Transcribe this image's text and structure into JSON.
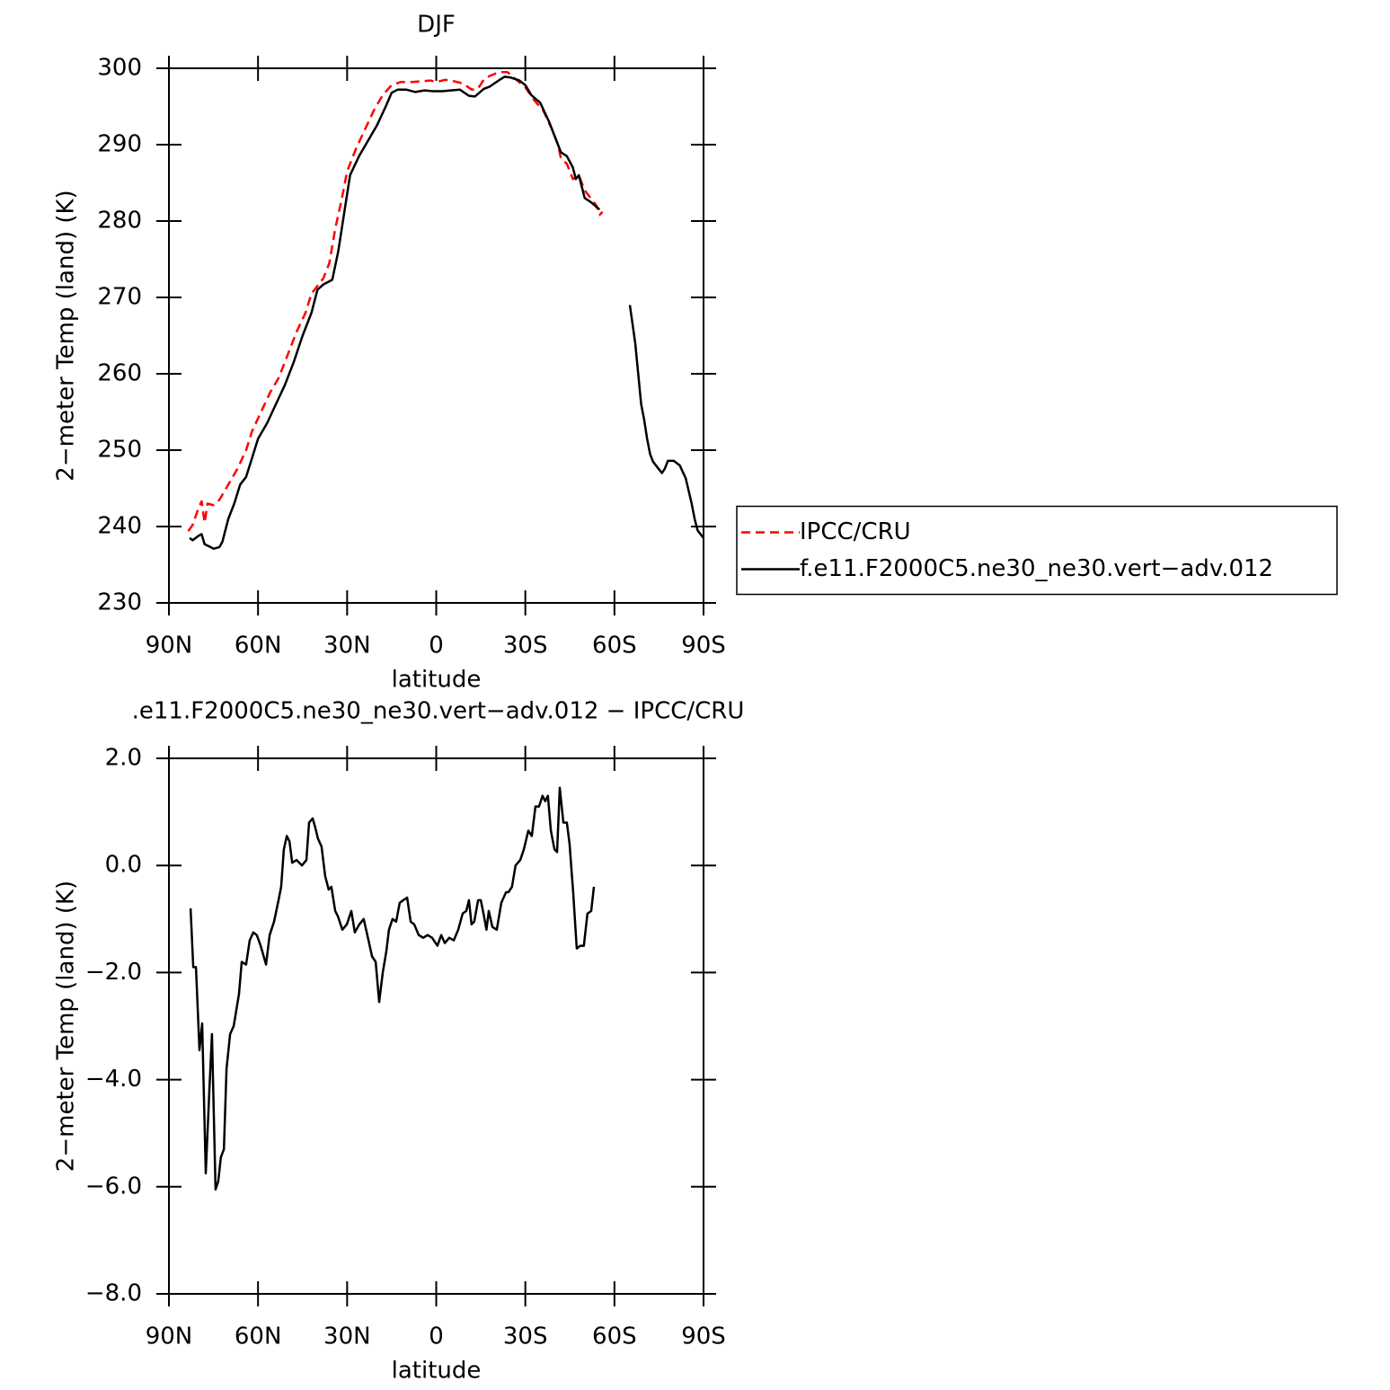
{
  "chart_data": [
    {
      "type": "line",
      "title": "DJF",
      "xlabel": "latitude",
      "ylabel": "2−meter Temp (land) (K)",
      "xlim": [
        90,
        -90
      ],
      "xticks": [
        {
          "value": 90,
          "label": "90N"
        },
        {
          "value": 60,
          "label": "60N"
        },
        {
          "value": 30,
          "label": "30N"
        },
        0,
        {
          "value": -30,
          "label": "30S"
        },
        {
          "value": -60,
          "label": "60S"
        },
        {
          "value": -90,
          "label": "90S"
        }
      ],
      "ylim": [
        230,
        300
      ],
      "yticks": [
        230,
        240,
        250,
        260,
        270,
        280,
        290,
        300
      ],
      "legend": "right",
      "series": [
        {
          "name": "IPCC/CRU",
          "color": "#ff0000",
          "linestyle": "dashed",
          "x": [
            83.5,
            82,
            80,
            79,
            78,
            77,
            75,
            73,
            70,
            67,
            64,
            62,
            59,
            56,
            53,
            50,
            47,
            44,
            42,
            38,
            36,
            34,
            32,
            30,
            27,
            24,
            21,
            18,
            15,
            12,
            8,
            5,
            2,
            0,
            -3,
            -6,
            -9,
            -12,
            -14,
            -16,
            -18,
            -20,
            -22,
            -24,
            -27,
            -30,
            -33,
            -36,
            -39,
            -41,
            -42,
            -44,
            -46,
            -48,
            -50,
            -52,
            -54,
            -55,
            -56
          ],
          "values": [
            239.4,
            240.2,
            242.5,
            243.3,
            240.5,
            243,
            242.8,
            243.5,
            245.5,
            247.5,
            250,
            252.5,
            255,
            257.5,
            259.5,
            262.5,
            265.5,
            268,
            270.5,
            272.5,
            274.5,
            279,
            282.5,
            286.5,
            289.5,
            292,
            294.5,
            296.5,
            297.8,
            298.2,
            298.2,
            298.3,
            298.4,
            298.2,
            298.5,
            298.3,
            298,
            297.2,
            297.3,
            298.5,
            299,
            299.3,
            299.5,
            299.5,
            298.5,
            297.5,
            295.8,
            294.5,
            292,
            290,
            288.2,
            287.5,
            285.5,
            286,
            284,
            283,
            282,
            280.8,
            281.2
          ]
        },
        {
          "name": "f.e11.F2000C5.ne30_ne30.vert−adv.012",
          "color": "#000000",
          "linestyle": "solid",
          "x": [
            83,
            82,
            80,
            79,
            78,
            76,
            75,
            73,
            72,
            70,
            68,
            66,
            64,
            62,
            60,
            57,
            54,
            51,
            48,
            45,
            42,
            40,
            38,
            35,
            33,
            31,
            29,
            26,
            23,
            20,
            17,
            15,
            13,
            10,
            7,
            4,
            1,
            -2,
            -5,
            -8,
            -11,
            -13,
            -16,
            -18,
            -21,
            -23,
            -25,
            -28,
            -30,
            -32,
            -35,
            -38,
            -40,
            -42,
            -44,
            -46,
            -47,
            -48,
            -50,
            -52,
            -55,
            -60,
            -65.2,
            -67,
            -68,
            -69,
            -70,
            -71,
            -72,
            -73,
            -75,
            -76,
            -77,
            -78,
            -80,
            -82,
            -84,
            -86,
            -87,
            -88,
            -90
          ],
          "values": [
            238.5,
            238.2,
            238.8,
            239,
            237.7,
            237.3,
            237.1,
            237.3,
            238,
            241,
            243,
            245.5,
            246.5,
            249,
            251.5,
            253.5,
            256,
            258.5,
            261.5,
            265,
            268,
            271,
            271.7,
            272.3,
            276,
            281,
            286,
            288.5,
            290.5,
            292.5,
            295,
            296.8,
            297.2,
            297.2,
            296.9,
            297.1,
            297,
            297,
            297.1,
            297.2,
            296.4,
            296.3,
            297.3,
            297.6,
            298.4,
            298.9,
            298.8,
            298.4,
            297.8,
            296.5,
            295.5,
            293,
            291,
            289,
            288.5,
            287,
            285.5,
            286,
            283,
            282.5,
            281.5,
            null,
            269,
            264,
            260,
            256,
            254,
            251.5,
            249.5,
            248.5,
            247.5,
            247,
            247.6,
            248.6,
            248.6,
            248,
            246.3,
            243,
            241,
            239.5,
            238.5
          ]
        }
      ]
    },
    {
      "type": "line",
      "title": ".e11.F2000C5.ne30_ne30.vert−adv.012 − IPCC/CRU",
      "xlabel": "latitude",
      "ylabel": "2−meter Temp (land) (K)",
      "xlim": [
        90,
        -90
      ],
      "xticks": [
        {
          "value": 90,
          "label": "90N"
        },
        {
          "value": 60,
          "label": "60N"
        },
        {
          "value": 30,
          "label": "30N"
        },
        0,
        {
          "value": -30,
          "label": "30S"
        },
        {
          "value": -60,
          "label": "60S"
        },
        {
          "value": -90,
          "label": "90S"
        }
      ],
      "ylim": [
        -8,
        2
      ],
      "yticks": [
        {
          "value": -8,
          "label": "−8.0"
        },
        {
          "value": -6,
          "label": "−6.0"
        },
        {
          "value": -4,
          "label": "−4.0"
        },
        {
          "value": -2,
          "label": "−2.0"
        },
        {
          "value": 0,
          "label": "0.0"
        },
        {
          "value": 2,
          "label": "2.0"
        }
      ],
      "series": [
        {
          "color": "#000000",
          "linestyle": "solid",
          "x": [
            82.7,
            81.8,
            80.9,
            79.7,
            78.8,
            77.6,
            76.4,
            75.5,
            74.3,
            73.4,
            72.5,
            71.5,
            70.6,
            69.4,
            68.2,
            66.4,
            65.5,
            64.0,
            62.8,
            61.6,
            60.4,
            59.1,
            57.3,
            56.1,
            54.6,
            53.1,
            52.2,
            51.3,
            50.3,
            49.4,
            48.5,
            47.0,
            45.2,
            43.7,
            42.8,
            41.6,
            40.7,
            39.8,
            38.6,
            37.4,
            36.2,
            35.3,
            34.0,
            33.1,
            31.6,
            30.1,
            28.6,
            27.4,
            25.9,
            24.4,
            23.2,
            21.6,
            20.4,
            19.2,
            18.0,
            16.8,
            15.9,
            14.7,
            13.5,
            12.3,
            11.1,
            9.8,
            8.6,
            7.4,
            5.9,
            4.4,
            2.9,
            1.4,
            -0.4,
            -1.7,
            -2.9,
            -4.4,
            -5.9,
            -7.4,
            -8.9,
            -10.1,
            -11.0,
            -11.9,
            -12.8,
            -14.1,
            -15.0,
            -15.9,
            -16.9,
            -17.7,
            -18.9,
            -20.4,
            -21.9,
            -23.5,
            -24.3,
            -25.5,
            -26.7,
            -28.3,
            -29.5,
            -31.0,
            -32.2,
            -33.4,
            -34.6,
            -35.8,
            -36.7,
            -37.6,
            -38.6,
            -39.8,
            -40.7,
            -41.6,
            -42.8,
            -44.0,
            -44.9,
            -46.1,
            -47.3,
            -48.5,
            -49.7,
            -50.9,
            -52.2,
            -53.1
          ],
          "values": [
            -0.8,
            -1.9,
            -1.9,
            -3.45,
            -2.95,
            -5.75,
            -4.2,
            -3.15,
            -6.05,
            -5.9,
            -5.45,
            -5.3,
            -3.8,
            -3.15,
            -3.0,
            -2.4,
            -1.8,
            -1.85,
            -1.4,
            -1.25,
            -1.3,
            -1.5,
            -1.85,
            -1.3,
            -1.05,
            -0.65,
            -0.4,
            0.3,
            0.55,
            0.45,
            0.05,
            0.1,
            0.0,
            0.1,
            0.8,
            0.88,
            0.7,
            0.5,
            0.35,
            -0.2,
            -0.45,
            -0.4,
            -0.85,
            -0.95,
            -1.2,
            -1.1,
            -0.85,
            -1.25,
            -1.1,
            -1.0,
            -1.3,
            -1.7,
            -1.8,
            -2.55,
            -2.0,
            -1.6,
            -1.2,
            -1.0,
            -1.05,
            -0.7,
            -0.65,
            -0.6,
            -1.05,
            -1.1,
            -1.3,
            -1.35,
            -1.3,
            -1.35,
            -1.5,
            -1.3,
            -1.45,
            -1.35,
            -1.4,
            -1.2,
            -0.9,
            -0.85,
            -0.65,
            -1.1,
            -1.05,
            -0.65,
            -0.65,
            -0.9,
            -1.2,
            -0.85,
            -1.15,
            -1.2,
            -0.7,
            -0.5,
            -0.5,
            -0.4,
            0.0,
            0.1,
            0.3,
            0.65,
            0.55,
            1.1,
            1.1,
            1.3,
            1.2,
            1.3,
            0.65,
            0.3,
            0.25,
            1.45,
            0.8,
            0.8,
            0.4,
            -0.5,
            -1.55,
            -1.5,
            -1.5,
            -0.9,
            -0.85,
            -0.4
          ]
        }
      ]
    }
  ]
}
